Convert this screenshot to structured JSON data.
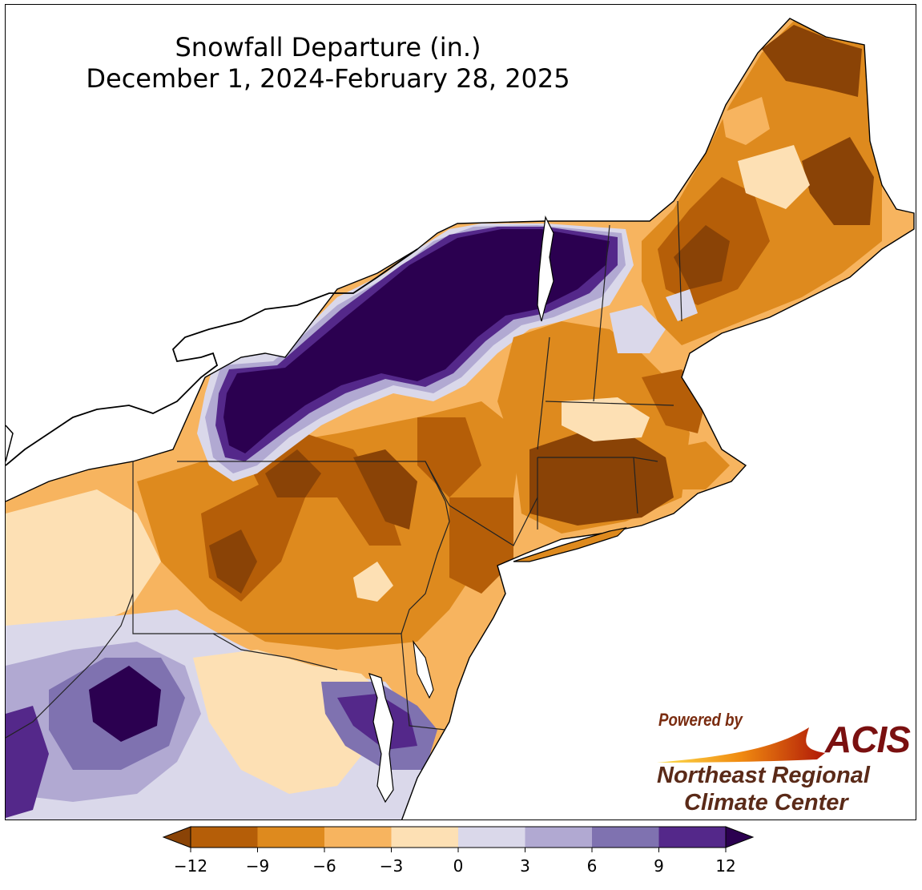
{
  "title": {
    "line1": "Snowfall Departure (in.)",
    "line2": "December 1, 2024-February 28, 2025"
  },
  "logo": {
    "powered_by": "Powered by",
    "acis": "ACIS",
    "org_line1": "Northeast Regional",
    "org_line2": "Climate Center"
  },
  "legend": {
    "ticks": [
      "−12",
      "−9",
      "−6",
      "−3",
      "0",
      "3",
      "6",
      "9",
      "12"
    ],
    "colors": [
      "#8a4306",
      "#b55e08",
      "#de8a1e",
      "#f7b45f",
      "#fde0b4",
      "#dad8ea",
      "#b1a9d2",
      "#7f72b0",
      "#54288a",
      "#2b0050"
    ],
    "extend": "both"
  },
  "colors": {
    "below_12": "#8a4306",
    "n12_n9": "#b55e08",
    "n9_n6": "#de8a1e",
    "n6_n3": "#f7b45f",
    "n3_0": "#fde0b4",
    "p0_3": "#dad8ea",
    "p3_6": "#b1a9d2",
    "p6_9": "#7f72b0",
    "p9_12": "#54288a",
    "above_12": "#2b0050",
    "water": "#ffffff",
    "border": "#000000"
  },
  "map_region": "Northeastern United States"
}
